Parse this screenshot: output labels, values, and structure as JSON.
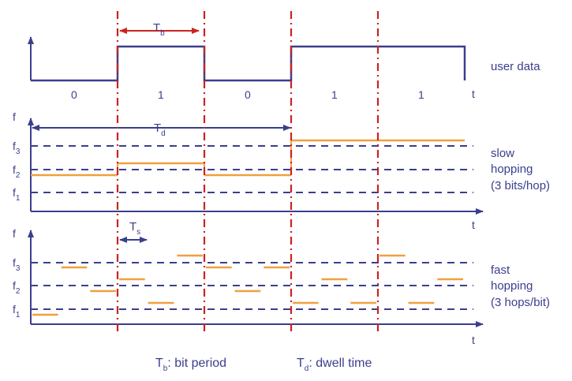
{
  "colors": {
    "axis": "#3a3f8c",
    "signal": "#3a3f8c",
    "hop": "#f0a040",
    "boundary": "#cc2222",
    "dashes": "#3a3f8c"
  },
  "panel_user": {
    "label": "user data",
    "t_label": "t",
    "bits": [
      "0",
      "1",
      "0",
      "1",
      "1"
    ],
    "tb_label": "T",
    "tb_sub": "b"
  },
  "panel_slow": {
    "label_line1": "slow",
    "label_line2": "hopping",
    "label_line3": "(3 bits/hop)",
    "f_label": "f",
    "t_label": "t",
    "td_label": "T",
    "td_sub": "d",
    "freq_labels": [
      {
        "name": "f",
        "sub": "3"
      },
      {
        "name": "f",
        "sub": "2"
      },
      {
        "name": "f",
        "sub": "1"
      }
    ]
  },
  "panel_fast": {
    "label_line1": "fast",
    "label_line2": "hopping",
    "label_line3": "(3 hops/bit)",
    "f_label": "f",
    "t_label": "t",
    "ts_label": "T",
    "ts_sub": "s",
    "freq_labels": [
      {
        "name": "f",
        "sub": "3"
      },
      {
        "name": "f",
        "sub": "2"
      },
      {
        "name": "f",
        "sub": "1"
      }
    ]
  },
  "legend": {
    "tb_name": "T",
    "tb_sub": "b",
    "tb_text": ": bit period",
    "td_name": "T",
    "td_sub": "d",
    "td_text": ": dwell time"
  },
  "data_bits": [
    0,
    1,
    0,
    1,
    1
  ],
  "slow_hops": [
    2,
    2,
    3
  ],
  "fast_hops": [
    1,
    3,
    2,
    2,
    1,
    3,
    3,
    2,
    3,
    1,
    2,
    1,
    3,
    1,
    2
  ]
}
